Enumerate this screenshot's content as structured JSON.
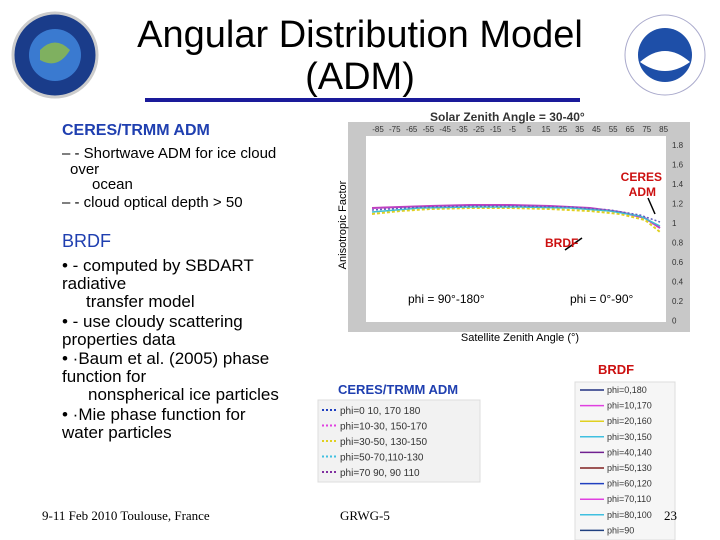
{
  "title": [
    "Angular Distribution Model",
    "(ADM)"
  ],
  "left": {
    "ceres_heading": "CERES/TRMM ADM",
    "ceres_lines": [
      "–  - Shortwave ADM for ice cloud",
      "over",
      "ocean",
      "–  - cloud optical depth > 50"
    ],
    "brdf_heading": "BRDF",
    "brdf_lines": [
      "•  - computed by SBDART",
      "radiative",
      "transfer model",
      "•  - use cloudy scattering",
      "properties data",
      "•     ·Baum et al. (2005) phase",
      "function for",
      "nonspherical ice particles",
      "•     ·Mie phase function for",
      "water particles"
    ]
  },
  "chart": {
    "title": "Solar Zenith Angle = 30-40°",
    "y_label": "Anisotropic Factor",
    "x_label": "Satellite Zenith Angle (°)",
    "top_ticks": [
      "-85",
      "-75",
      "-65",
      "-55",
      "-45",
      "-35",
      "-25",
      "-15",
      "-5",
      "5",
      "15",
      "25",
      "35",
      "45",
      "55",
      "65",
      "75",
      "85"
    ],
    "right_ticks": [
      "1.8",
      "1.6",
      "1.4",
      "1.2",
      "1",
      "0.8",
      "0.6",
      "0.4",
      "0.2",
      "0"
    ],
    "annotations": {
      "ceres": [
        "CERES",
        "ADM"
      ],
      "brdf": "BRDF",
      "phi_left": "phi = 90°-180°",
      "phi_right": "phi = 0°-90°"
    }
  },
  "ceres_legend": {
    "title": "CERES/TRMM ADM",
    "entries": [
      "phi=0 10, 170 180",
      "phi=10-30, 150-170",
      "phi=30-50, 130-150",
      "phi=50-70,110-130",
      "phi=70 90, 90 110"
    ]
  },
  "brdf_legend": {
    "title": "BRDF",
    "entries": [
      "phi=0,180",
      "phi=10,170",
      "phi=20,160",
      "phi=30,150",
      "phi=40,140",
      "phi=50,130",
      "phi=60,120",
      "phi=70,110",
      "phi=80,100",
      "phi=90"
    ]
  },
  "footer": {
    "left": "9-11 Feb 2010 Toulouse, France",
    "center": "GRWG-5",
    "page": "23"
  }
}
